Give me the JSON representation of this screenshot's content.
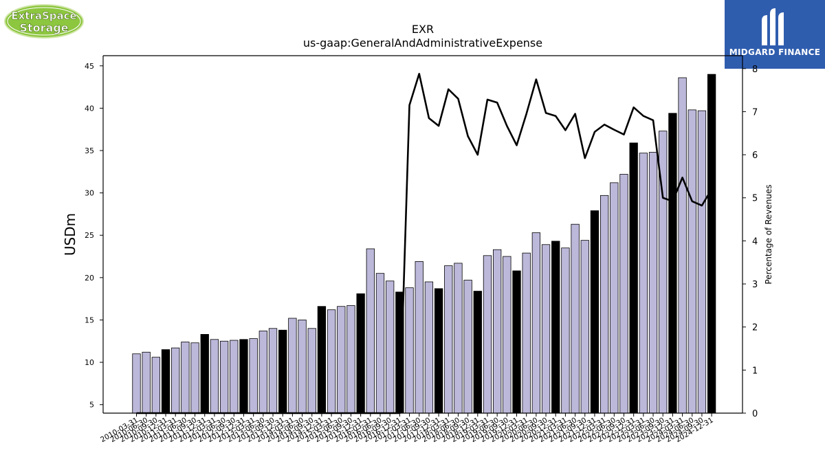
{
  "header": {
    "title": "EXR",
    "subtitle": "us-gaap:GeneralAndAdministrativeExpense"
  },
  "logos": {
    "left": {
      "line1": "ExtraSpace",
      "line2": "Storage",
      "color": "#8dc63f"
    },
    "right": {
      "text": "MIDGARD FINANCE",
      "color": "#2f5dae"
    }
  },
  "colors": {
    "bar_quarter": "#bcb8da",
    "bar_q4": "#000000",
    "line": "#000000"
  },
  "chart_data": {
    "type": "bar",
    "categories": [
      "2010-03-31",
      "2010-06-30",
      "2010-09-30",
      "2010-12-31",
      "2011-03-31",
      "2011-06-30",
      "2011-09-30",
      "2011-12-31",
      "2012-03-31",
      "2012-06-30",
      "2012-09-30",
      "2012-12-31",
      "2013-03-31",
      "2013-06-30",
      "2013-09-30",
      "2013-12-31",
      "2014-03-31",
      "2014-06-30",
      "2014-09-30",
      "2014-12-31",
      "2015-03-31",
      "2015-06-30",
      "2015-09-30",
      "2015-12-31",
      "2016-03-31",
      "2016-06-30",
      "2016-09-30",
      "2016-12-31",
      "2017-03-31",
      "2017-06-30",
      "2017-09-30",
      "2017-12-31",
      "2018-03-31",
      "2018-06-30",
      "2018-09-30",
      "2018-12-31",
      "2019-03-31",
      "2019-06-30",
      "2019-09-30",
      "2019-12-31",
      "2020-03-31",
      "2020-06-30",
      "2020-09-30",
      "2020-12-31",
      "2021-03-31",
      "2021-06-30",
      "2021-09-30",
      "2021-12-31",
      "2022-03-31",
      "2022-06-30",
      "2022-09-30",
      "2022-12-31",
      "2023-03-31",
      "2023-06-30",
      "2023-09-30",
      "2023-12-31",
      "2024-03-31",
      "2024-06-30",
      "2024-09-30",
      "2024-12-31"
    ],
    "tick_labels": [
      "2010-03-31",
      "2010-06-30",
      "2010-09-30",
      "2010-12-31",
      "2011-03-31",
      "2011-06-30",
      "2011-09-30",
      "2011-12-31",
      "2012-03-31",
      "2012-06-30",
      "2012-09-30",
      "2012-12-31",
      "2013-03-31",
      "2013-06-30",
      "2013-09-30",
      "2013-12-31",
      "2014-03-31",
      "2014-06-30",
      "2014-09-30",
      "2014-12-31",
      "2015-03-31",
      "2015-06-30",
      "2015-09-30",
      "2015-12-31",
      "2016-03-31",
      "2016-06-30",
      "2016-09-30",
      "2016-12-31",
      "2017-03-31",
      "2017-06-30",
      "2017-09-30",
      "2017-12-31",
      "2018-03-31",
      "2018-06-30",
      "2018-09-30",
      "2018-12-31",
      "2019-03-31",
      "2019-06-30",
      "2019-09-30",
      "2019-12-31",
      "2020-03-31",
      "2020-06-30",
      "2020-09-30",
      "2020-12-31",
      "2021-03-31",
      "2021-06-30",
      "2021-09-30",
      "2021-12-31",
      "2022-03-31",
      "2022-06-30",
      "2022-09-30",
      "2022-12-31",
      "2023-03-31",
      "2023-06-30",
      "2023-09-30",
      "2023-12-31",
      "2024-03-31",
      "2024-06-30",
      "2024-09-30",
      "2024-12-31"
    ],
    "series": [
      {
        "axis": "left",
        "values": [
          11.0,
          11.2,
          10.6,
          11.5,
          11.7,
          12.4,
          12.3,
          13.3,
          12.7,
          12.5,
          12.6,
          12.7,
          12.8,
          13.7,
          14.0,
          13.8,
          15.2,
          15.0,
          14.0,
          16.6,
          16.2,
          16.6,
          16.7,
          18.1,
          23.4,
          20.5,
          19.6,
          18.3,
          18.8,
          21.9,
          19.5,
          18.7,
          21.4,
          21.7,
          19.7,
          18.4,
          22.6,
          23.3,
          22.5,
          20.8,
          22.9,
          25.3,
          23.9,
          24.3,
          23.5,
          26.3,
          24.4,
          27.9,
          29.7,
          31.2,
          32.2,
          35.9,
          34.7,
          34.8,
          37.3,
          39.4,
          43.6,
          39.8,
          39.7,
          44.0
        ],
        "q4_highlight": true
      },
      {
        "axis": "right",
        "type": "line",
        "values": [
          0,
          0,
          0,
          0,
          0,
          0,
          0,
          0,
          0,
          0,
          0,
          0,
          0,
          0,
          0,
          0,
          0,
          0,
          0,
          0,
          0,
          0,
          0,
          0,
          0,
          0,
          0,
          0,
          7.15,
          7.88,
          6.85,
          6.67,
          7.52,
          7.3,
          6.43,
          6.0,
          7.28,
          7.21,
          6.67,
          6.22,
          6.95,
          7.75,
          6.97,
          6.9,
          6.57,
          6.95,
          5.92,
          6.53,
          6.7,
          6.58,
          6.47,
          7.1,
          6.9,
          6.8,
          5.0,
          4.92,
          5.47,
          4.92,
          4.82,
          5.2
        ]
      }
    ],
    "ylabel": "USDm",
    "y2label": "Percentage of Revenues",
    "ylim": [
      4,
      46.2
    ],
    "y2lim": [
      0,
      8.3
    ],
    "yticks": [
      5,
      10,
      15,
      20,
      25,
      30,
      35,
      40,
      45
    ],
    "y2ticks": [
      0,
      1,
      2,
      3,
      4,
      5,
      6,
      7,
      8
    ],
    "grid": false,
    "legend": "none"
  }
}
